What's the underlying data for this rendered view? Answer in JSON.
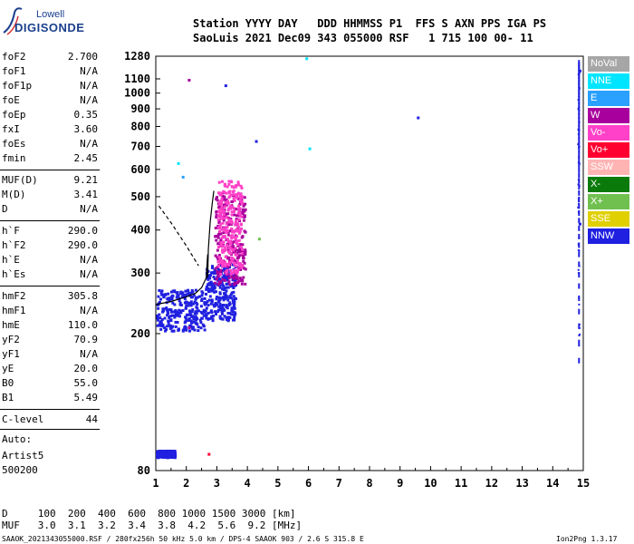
{
  "logo": {
    "line1": "Lowell",
    "line2": "DIGISONDE"
  },
  "header": {
    "row1": "Station YYYY DAY   DDD HHMMSS P1  FFS S AXN PPS IGA PS",
    "row2": "SaoLuis 2021 Dec09 343 055000 RSF   1 715 100 00- 11"
  },
  "params": [
    {
      "name": "foF2",
      "value": "2.700"
    },
    {
      "name": "foF1",
      "value": "N/A"
    },
    {
      "name": "foF1p",
      "value": "N/A"
    },
    {
      "name": "foE",
      "value": "N/A"
    },
    {
      "name": "foEp",
      "value": "0.35"
    },
    {
      "name": "fxI",
      "value": "3.60"
    },
    {
      "name": "foEs",
      "value": "N/A"
    },
    {
      "name": "fmin",
      "value": "2.45"
    },
    {
      "name": "MUF(D)",
      "value": "9.21"
    },
    {
      "name": "M(D)",
      "value": "3.41"
    },
    {
      "name": "D",
      "value": "N/A"
    },
    {
      "name": "h`F",
      "value": "290.0"
    },
    {
      "name": "h`F2",
      "value": "290.0"
    },
    {
      "name": "h`E",
      "value": "N/A"
    },
    {
      "name": "h`Es",
      "value": "N/A"
    },
    {
      "name": "hmF2",
      "value": "305.8"
    },
    {
      "name": "hmF1",
      "value": "N/A"
    },
    {
      "name": "hmE",
      "value": "110.0"
    },
    {
      "name": "yF2",
      "value": "70.9"
    },
    {
      "name": "yF1",
      "value": "N/A"
    },
    {
      "name": "yE",
      "value": "20.0"
    },
    {
      "name": "B0",
      "value": "55.0"
    },
    {
      "name": "B1",
      "value": "5.49"
    },
    {
      "name": "C-level",
      "value": "44"
    }
  ],
  "auto": {
    "line1": "Auto:",
    "line2": "Artist5",
    "line3": "500200"
  },
  "legend": [
    {
      "label": "NoVal",
      "color": "#a6a6a6"
    },
    {
      "label": "NNE",
      "color": "#00e5ff"
    },
    {
      "label": "E",
      "color": "#2aa0ff"
    },
    {
      "label": "W",
      "color": "#a8009c"
    },
    {
      "label": "Vo-",
      "color": "#ff40c8"
    },
    {
      "label": "Vo+",
      "color": "#ff0030"
    },
    {
      "label": "SSW",
      "color": "#ffb4b4"
    },
    {
      "label": "X-",
      "color": "#0a7a0a"
    },
    {
      "label": "X+",
      "color": "#70c050"
    },
    {
      "label": "SSE",
      "color": "#e0d000"
    },
    {
      "label": "NNW",
      "color": "#2020e0"
    }
  ],
  "bottom": {
    "distance": "D     100  200  400  600  800 1000 1500 3000 [km]",
    "muf": "MUF   3.0  3.1  3.2  3.4  3.8  4.2  5.6  9.2 [MHz]",
    "footer_left": "SAAOK_2021343055000.RSF / 280fx256h 50 kHz 5.0 km / DPS-4 SAAOK 903 / 2.6 S 315.8 E",
    "footer_right": "Ion2Png 1.3.17"
  },
  "chart_data": {
    "type": "scatter",
    "xlim": [
      1,
      15
    ],
    "ylim": [
      80,
      1280
    ],
    "y_scale": "log",
    "x_ticks": [
      "1",
      "2",
      "3",
      "4",
      "5",
      "6",
      "7",
      "8",
      "9",
      "10",
      "11",
      "12",
      "13",
      "14",
      "15"
    ],
    "y_ticks": [
      "80",
      "200",
      "300",
      "400",
      "500",
      "600",
      "700",
      "800",
      "900",
      "1000",
      "1100",
      "1280"
    ],
    "trace_f2": [
      [
        1.0,
        243
      ],
      [
        1.5,
        248
      ],
      [
        2.0,
        256
      ],
      [
        2.3,
        262
      ],
      [
        2.5,
        272
      ],
      [
        2.65,
        290
      ],
      [
        2.7,
        340
      ]
    ],
    "trace_profile": [
      [
        2.7,
        290
      ],
      [
        2.72,
        350
      ],
      [
        2.78,
        420
      ],
      [
        2.85,
        480
      ],
      [
        2.9,
        520
      ]
    ],
    "trace_dashed": [
      [
        1.1,
        470
      ],
      [
        1.5,
        420
      ],
      [
        2.0,
        360
      ],
      [
        2.4,
        315
      ]
    ],
    "scatter_clusters": [
      {
        "series": "NNW",
        "x": [
          1.0,
          2.6
        ],
        "y": [
          205,
          270
        ]
      },
      {
        "series": "NNW",
        "x": [
          2.6,
          3.6
        ],
        "y": [
          220,
          320
        ]
      },
      {
        "series": "W",
        "x": [
          2.9,
          3.9
        ],
        "y": [
          280,
          520
        ]
      },
      {
        "series": "Vo-",
        "x": [
          3.0,
          3.8
        ],
        "y": [
          300,
          560
        ]
      },
      {
        "series": "NNW",
        "x": [
          1.0,
          1.6
        ],
        "y": [
          88,
          92
        ]
      },
      {
        "series": "NNW",
        "x": [
          14.8,
          14.85
        ],
        "y": [
          180,
          1240
        ]
      }
    ]
  }
}
